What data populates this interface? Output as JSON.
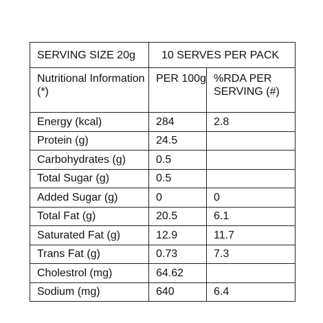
{
  "header": {
    "serving_size": "SERVING SIZE  20g",
    "serves_per_pack": "10 SERVES PER PACK"
  },
  "columns": {
    "nutrient_info": "Nutritional Information (*)",
    "per_100g": "PER 100g",
    "rda_per_serving": "%RDA PER SERVING (#)"
  },
  "rows": [
    {
      "name": "Energy (kcal)",
      "per100g": "284",
      "rda": "2.8"
    },
    {
      "name": "Protein (g)",
      "per100g": "24.5",
      "rda": ""
    },
    {
      "name": "Carbohydrates (g)",
      "per100g": "0.5",
      "rda": ""
    },
    {
      "name": "Total Sugar (g)",
      "per100g": "0.5",
      "rda": ""
    },
    {
      "name": "Added Sugar (g)",
      "per100g": "0",
      "rda": "0"
    },
    {
      "name": "Total Fat (g)",
      "per100g": "20.5",
      "rda": "6.1"
    },
    {
      "name": "Saturated Fat (g)",
      "per100g": "12.9",
      "rda": "11.7"
    },
    {
      "name": "Trans Fat (g)",
      "per100g": "0.73",
      "rda": "7.3"
    },
    {
      "name": "Cholestrol (mg)",
      "per100g": "64.62",
      "rda": ""
    },
    {
      "name": "Sodium (mg)",
      "per100g": "640",
      "rda": "6.4"
    }
  ]
}
